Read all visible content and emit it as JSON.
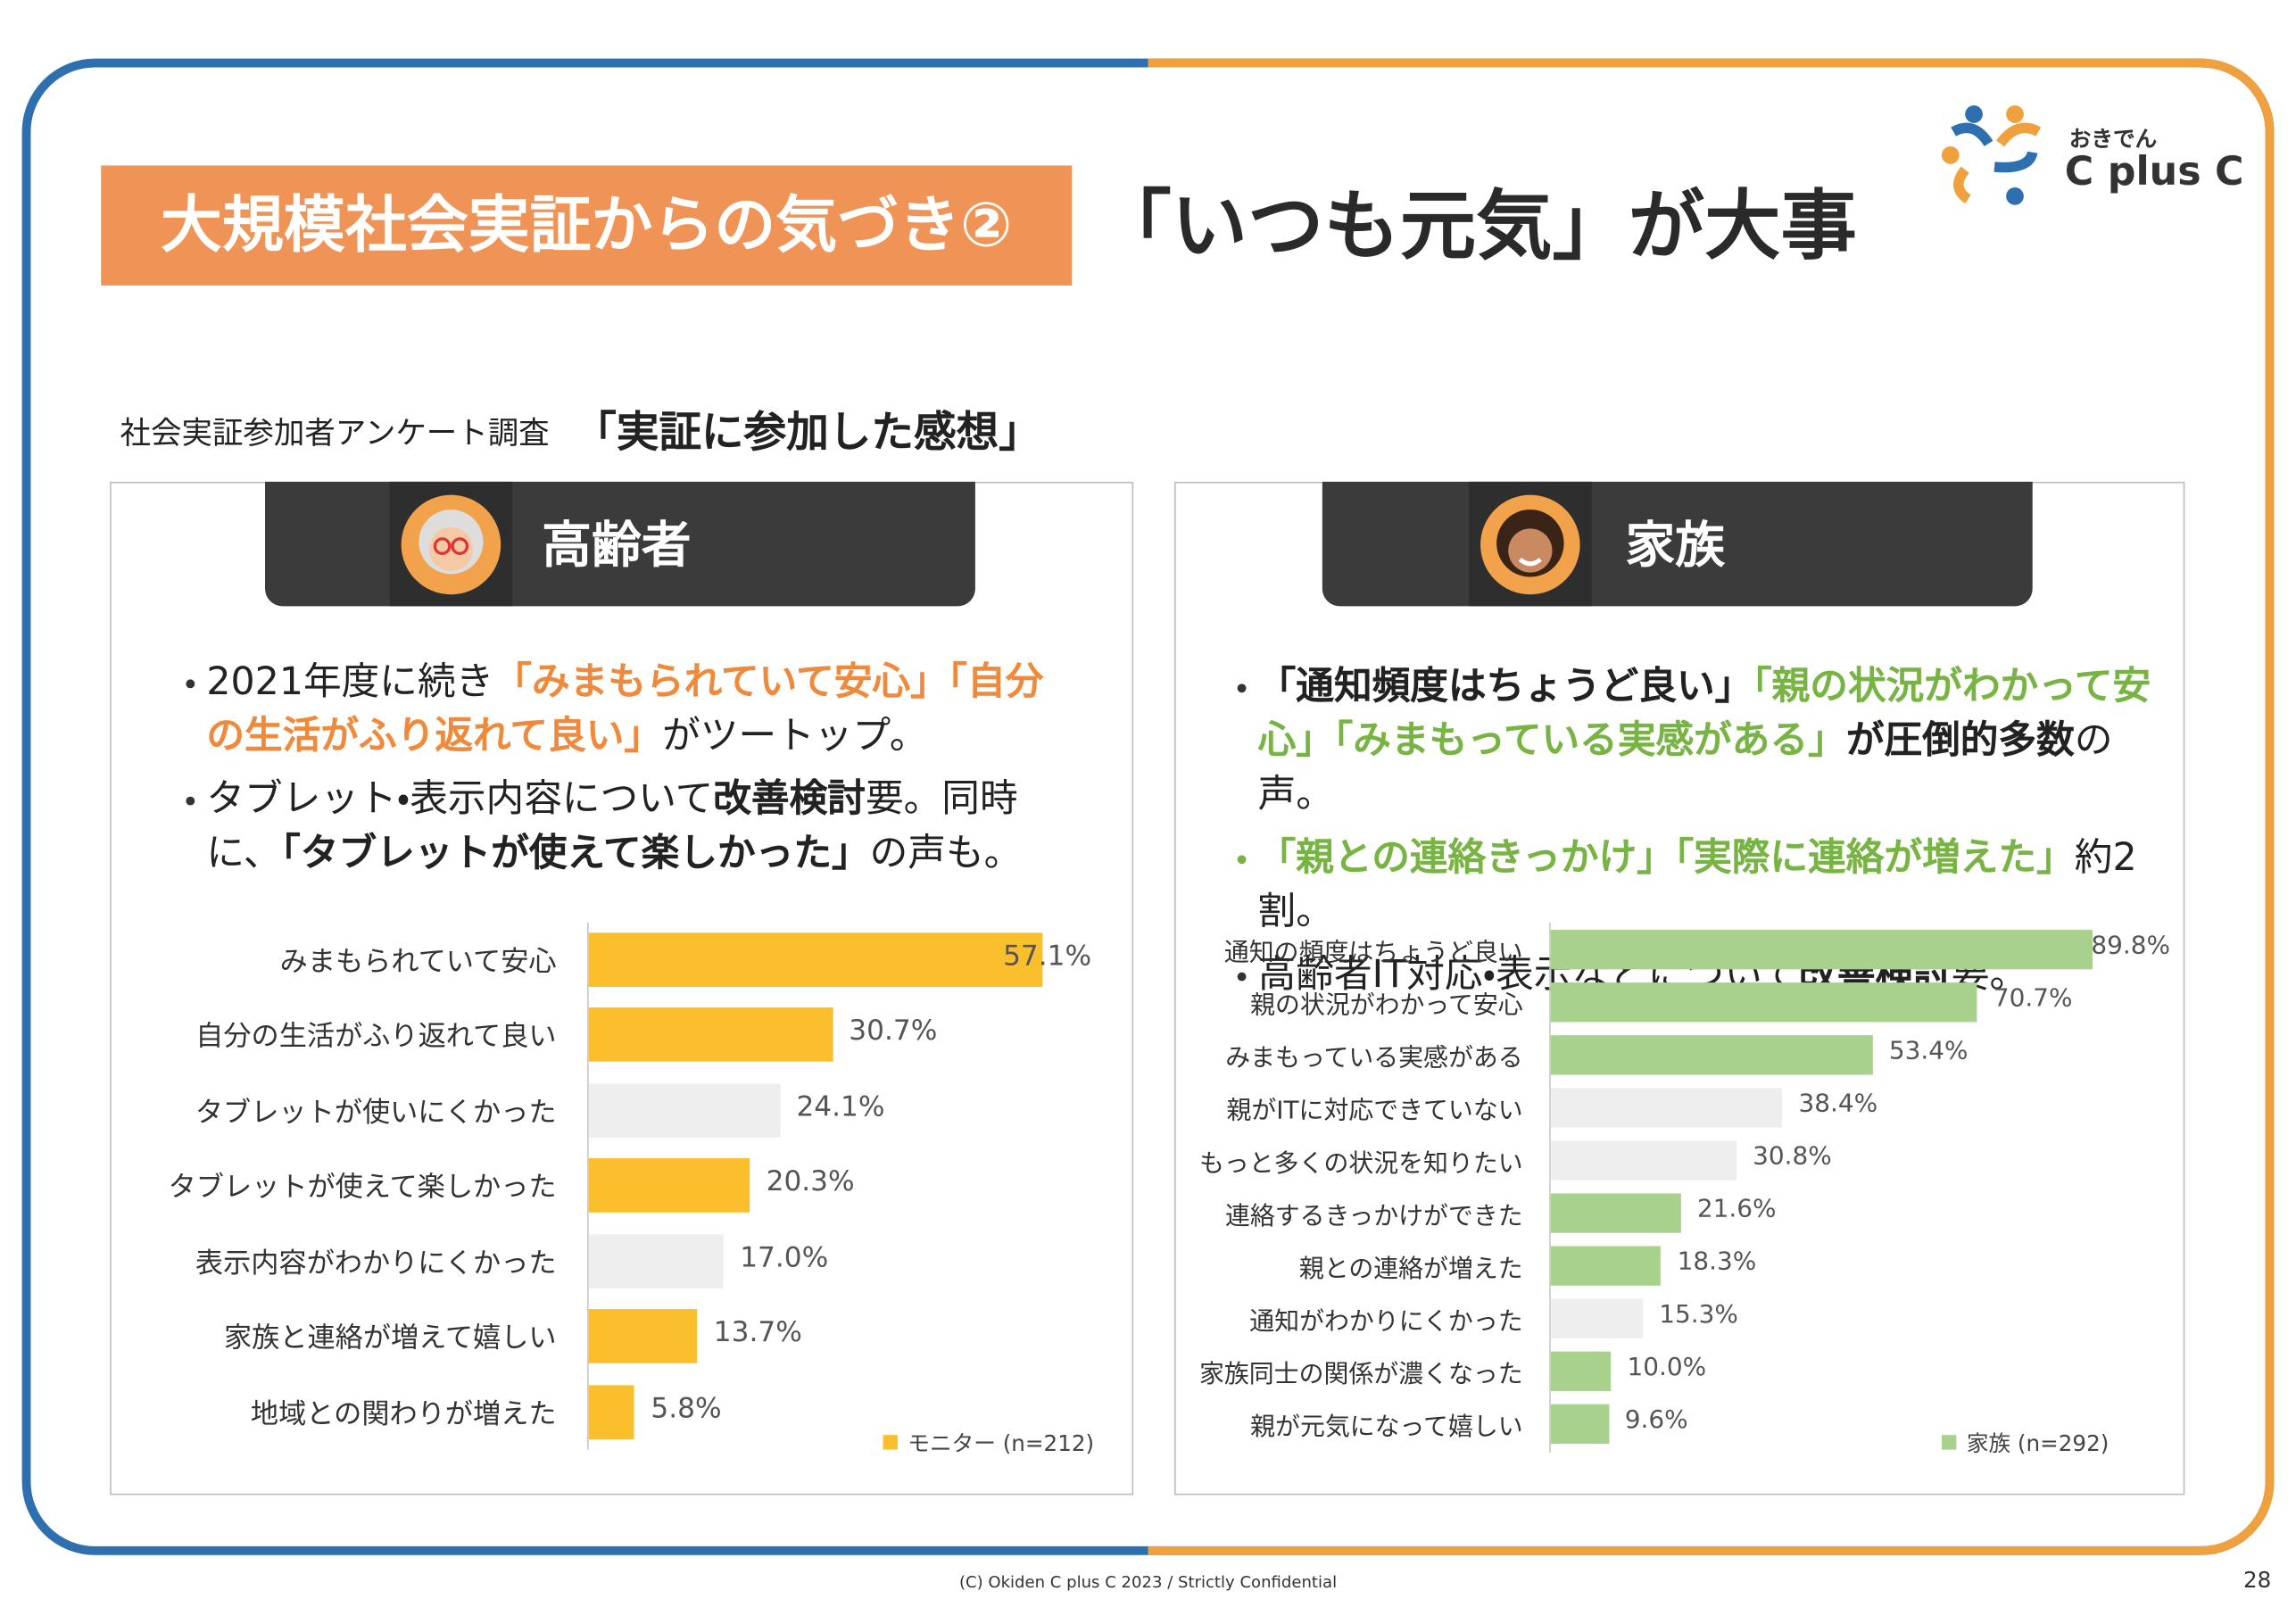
{
  "header": {
    "badge": "大規模社会実証からの気づき②",
    "title": "「いつも元気」が大事"
  },
  "logo": {
    "top": "おきでん",
    "name": "C plus C"
  },
  "survey": {
    "label": "社会実証参加者アンケート調査",
    "title": "「実証に参加した感想」"
  },
  "panels": [
    {
      "heading": "高齢者",
      "bullets": [
        [
          {
            "text": "2021年度に続き",
            "style": "plain"
          },
          {
            "text": "「みまもられていて安心」「自分の生活がふり返れて良い」",
            "style": "accent"
          },
          {
            "text": "がツートップ。",
            "style": "plain"
          }
        ],
        [
          {
            "text": "タブレット・表示内容について",
            "style": "plain"
          },
          {
            "text": "改善検討",
            "style": "bold"
          },
          {
            "text": "要。同時に、",
            "style": "plain"
          },
          {
            "text": "「タブレットが使えて楽しかった」",
            "style": "bold"
          },
          {
            "text": "の声も。",
            "style": "plain"
          }
        ]
      ]
    },
    {
      "heading": "家族",
      "bullets": [
        [
          {
            "text": "「通知頻度はちょうど良い」",
            "style": "bold"
          },
          {
            "text": "「親の状況がわかって安心」「みまもっている実感がある」",
            "style": "accent"
          },
          {
            "text": "が圧倒的多数",
            "style": "bold"
          },
          {
            "text": "の声。",
            "style": "plain"
          }
        ],
        [
          {
            "text": "「親との連絡きっかけ」「実際に連絡が増えた」",
            "style": "accent"
          },
          {
            "text": "約2割。",
            "style": "plain"
          }
        ],
        [
          {
            "text": "高齢者IT対応・表示などについて",
            "style": "plain"
          },
          {
            "text": "改善検討",
            "style": "bold"
          },
          {
            "text": "要。",
            "style": "plain"
          }
        ]
      ]
    }
  ],
  "chart_data": [
    {
      "type": "bar",
      "orientation": "horizontal",
      "categories": [
        "みまもられていて安心",
        "自分の生活がふり返れて良い",
        "タブレットが使いにくかった",
        "タブレットが使えて楽しかった",
        "表示内容がわかりにくかった",
        "家族と連絡が増えて嬉しい",
        "地域との関わりが増えた"
      ],
      "series": [
        {
          "name": "モニター (n=212)",
          "color": "#fbbf2d",
          "values": [
            57.1,
            30.7,
            24.1,
            20.3,
            17.0,
            13.7,
            5.8
          ],
          "value_labels": [
            "57.1%",
            "30.7%",
            "24.1%",
            "20.3%",
            "17.0%",
            "13.7%",
            "5.8%"
          ]
        }
      ],
      "bar_colors": [
        "#fbbf2d",
        "#fbbf2d",
        "#eeeeee",
        "#fbbf2d",
        "#eeeeee",
        "#fbbf2d",
        "#fbbf2d"
      ],
      "xlim": [
        0,
        100
      ],
      "legend": "lower right"
    },
    {
      "type": "bar",
      "orientation": "horizontal",
      "categories": [
        "通知の頻度はちょうど良い",
        "親の状況がわかって安心",
        "みまもっている実感がある",
        "親がITに対応できていない",
        "もっと多くの状況を知りたい",
        "連絡するきっかけができた",
        "親との連絡が増えた",
        "通知がわかりにくかった",
        "家族同士の関係が濃くなった",
        "親が元気になって嬉しい"
      ],
      "series": [
        {
          "name": "家族 (n=292)",
          "color": "#a9d18e",
          "values": [
            89.8,
            70.7,
            53.4,
            38.4,
            30.8,
            21.6,
            18.3,
            15.3,
            10.0,
            9.6
          ],
          "value_labels": [
            "89.8%",
            "70.7%",
            "53.4%",
            "38.4%",
            "30.8%",
            "21.6%",
            "18.3%",
            "15.3%",
            "10.0%",
            "9.6%"
          ]
        }
      ],
      "bar_colors": [
        "#a9d18e",
        "#a9d18e",
        "#a9d18e",
        "#eeeeee",
        "#eeeeee",
        "#a9d18e",
        "#a9d18e",
        "#eeeeee",
        "#a9d18e",
        "#a9d18e"
      ],
      "xlim": [
        0,
        100
      ],
      "legend": "lower right"
    }
  ],
  "footer": {
    "copyright": "(C) Okiden C plus C 2023 / Strictly Confidential",
    "page": "28"
  }
}
